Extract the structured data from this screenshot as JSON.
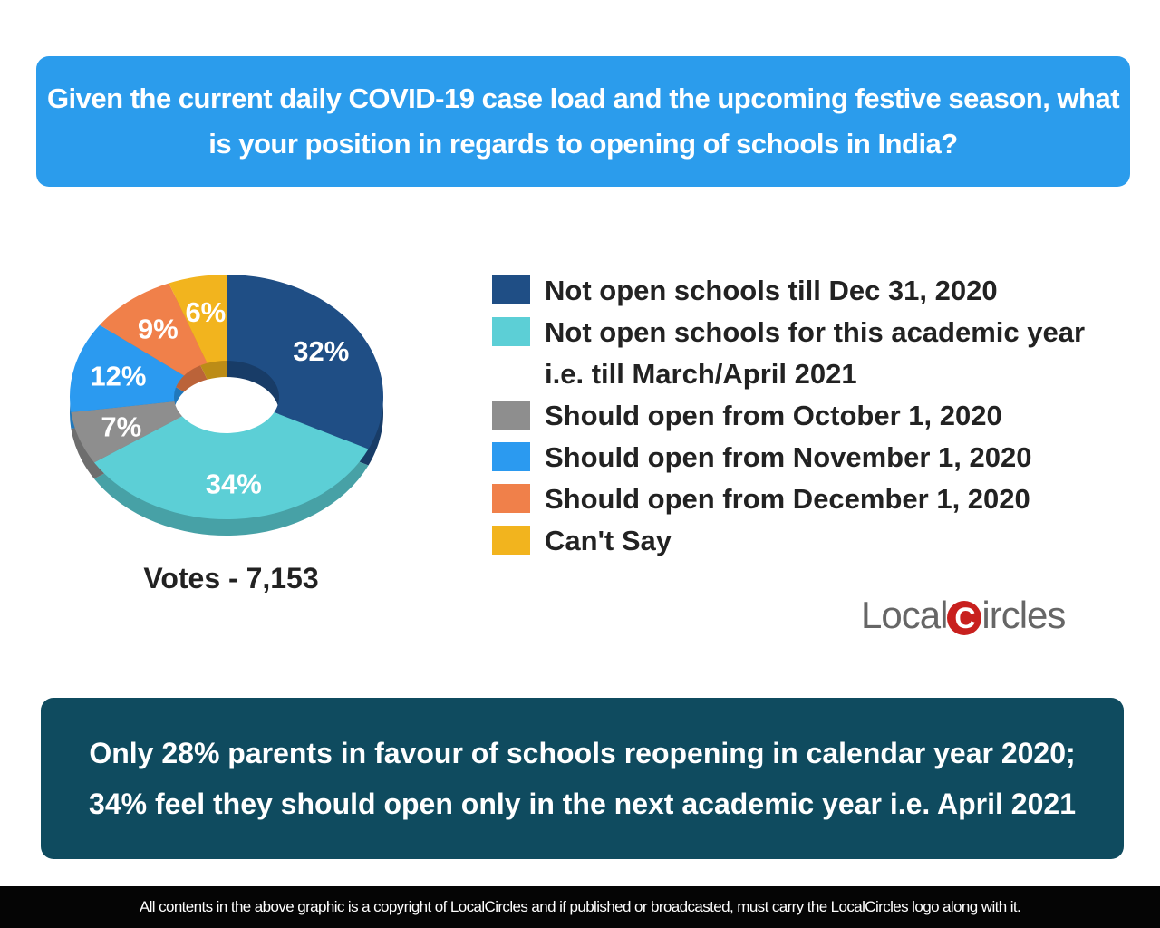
{
  "question": "Given the current daily COVID-19 case load and the upcoming festive season, what is your position in regards to opening of schools in India?",
  "chart_data": {
    "type": "pie",
    "donut": true,
    "categories": [
      "Not open schools till Dec 31, 2020",
      "Not open schools for this academic year i.e. till March/April 2021",
      "Should open from October 1, 2020",
      "Should open from November 1, 2020",
      "Should open from December 1, 2020",
      "Can't Say"
    ],
    "slice_order_clockwise_from_top": [
      0,
      1,
      2,
      3,
      4,
      5
    ],
    "values": [
      32,
      34,
      7,
      12,
      9,
      6
    ],
    "data_labels": [
      "32%",
      "34%",
      "7%",
      "12%",
      "9%",
      "6%"
    ],
    "colors": [
      "#1f4e85",
      "#5ccfd6",
      "#8e8e8e",
      "#2b9af0",
      "#f0804a",
      "#f2b41e"
    ],
    "legend": "right",
    "legend_lines": [
      [
        "Not open schools till Dec 31, 2020"
      ],
      [
        "Not open schools for this academic year",
        "i.e. till March/April 2021"
      ],
      [
        "Should open from October 1, 2020"
      ],
      [
        "Should open from November 1, 2020"
      ],
      [
        "Should open from December 1, 2020"
      ],
      [
        "Can't Say"
      ]
    ]
  },
  "votes": "Votes - 7,153",
  "logo": {
    "text_left": "Local",
    "c": "C",
    "text_right": "ircles"
  },
  "summary": "Only 28% parents in favour of schools reopening in calendar year 2020; 34% feel they should open only in the next academic year i.e. April 2021",
  "footer": "All contents in the above graphic is a copyright of LocalCircles and if published or broadcasted, must carry the LocalCircles logo along with it."
}
